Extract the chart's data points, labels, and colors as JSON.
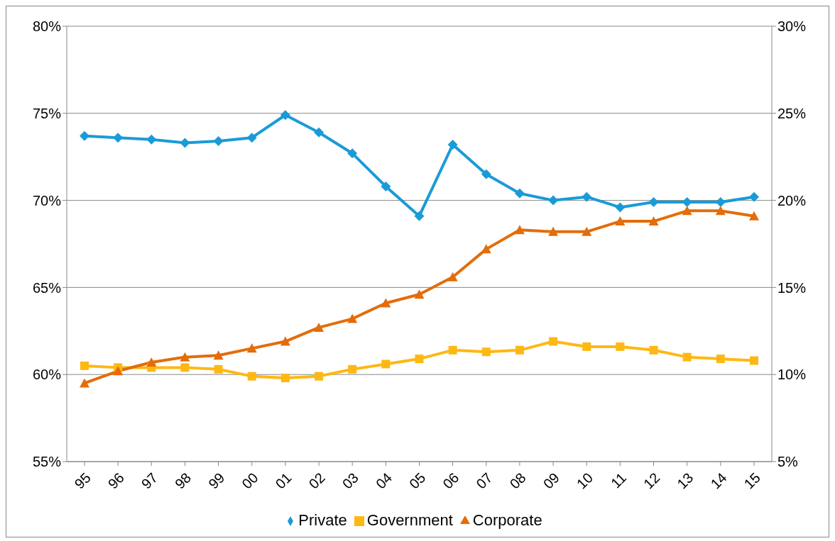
{
  "chart_data": {
    "type": "line",
    "categories": [
      "95",
      "96",
      "97",
      "98",
      "99",
      "00",
      "01",
      "02",
      "03",
      "04",
      "05",
      "06",
      "07",
      "08",
      "09",
      "10",
      "11",
      "12",
      "13",
      "14",
      "15"
    ],
    "series": [
      {
        "name": "Private",
        "color": "#1a9bd7",
        "marker": "diamond",
        "values": [
          73.7,
          73.6,
          73.5,
          73.3,
          73.4,
          73.6,
          74.9,
          73.9,
          72.7,
          70.8,
          69.1,
          73.2,
          71.5,
          70.4,
          70.0,
          70.2,
          69.6,
          69.9,
          69.9,
          69.9,
          70.2
        ]
      },
      {
        "name": "Government",
        "color": "#fdb813",
        "marker": "square",
        "axis": "y2",
        "values": [
          10.5,
          10.4,
          10.4,
          10.4,
          10.3,
          9.9,
          9.8,
          9.9,
          10.3,
          10.6,
          10.9,
          11.4,
          11.3,
          11.4,
          11.9,
          11.6,
          11.6,
          11.4,
          11.0,
          10.9,
          10.8
        ]
      },
      {
        "name": "Corporate",
        "color": "#e46c0a",
        "marker": "triangle",
        "axis": "y2",
        "values": [
          9.5,
          10.2,
          10.7,
          11.0,
          11.1,
          11.5,
          11.9,
          12.7,
          13.2,
          14.1,
          14.6,
          15.6,
          17.2,
          18.3,
          18.2,
          18.2,
          18.8,
          18.8,
          19.4,
          19.4,
          19.1
        ]
      }
    ],
    "ylim": [
      55,
      80
    ],
    "yticks": [
      {
        "value": 55,
        "label": "55%"
      },
      {
        "value": 60,
        "label": "60%"
      },
      {
        "value": 65,
        "label": "65%"
      },
      {
        "value": 70,
        "label": "70%"
      },
      {
        "value": 75,
        "label": "75%"
      },
      {
        "value": 80,
        "label": "80%"
      }
    ],
    "y2lim": [
      5,
      30
    ],
    "y2ticks": [
      {
        "value": 5,
        "label": "5%"
      },
      {
        "value": 10,
        "label": "10%"
      },
      {
        "value": 15,
        "label": "15%"
      },
      {
        "value": 20,
        "label": "20%"
      },
      {
        "value": 25,
        "label": "25%"
      },
      {
        "value": 30,
        "label": "30%"
      }
    ],
    "grid": "y",
    "legend": "bottom",
    "line_style": "solid"
  }
}
